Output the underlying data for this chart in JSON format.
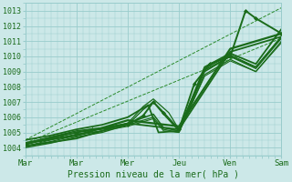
{
  "xlabel": "Pression niveau de la mer( hPa )",
  "bg_color": "#cce8e8",
  "grid_color": "#99cccc",
  "line_color": "#1a6b1a",
  "ylim": [
    1003.5,
    1013.5
  ],
  "yticks": [
    1004,
    1005,
    1006,
    1007,
    1008,
    1009,
    1010,
    1011,
    1012,
    1013
  ],
  "xlim": [
    0,
    5.0
  ],
  "xtick_positions": [
    0,
    1,
    2,
    3,
    4,
    5
  ],
  "xtick_labels": [
    "Mar",
    "Mar",
    "Mer",
    "Jeu",
    "Ven",
    "Sam"
  ],
  "vlines": [
    1,
    2,
    3,
    4,
    5
  ],
  "lines": [
    {
      "x": [
        0.0,
        0.3,
        0.7,
        1.0,
        1.3,
        1.6,
        2.0,
        2.3,
        2.5,
        2.7,
        3.0,
        3.3,
        3.6,
        4.0,
        4.3,
        4.5,
        5.0
      ],
      "y": [
        1004.2,
        1004.5,
        1004.8,
        1005.0,
        1005.2,
        1005.3,
        1005.5,
        1006.1,
        1007.0,
        1006.3,
        1005.2,
        1008.2,
        1009.5,
        1010.0,
        1013.0,
        1012.5,
        1011.5
      ],
      "style": "-",
      "lw": 1.4,
      "marker": "D",
      "ms": 2.0,
      "color": "#1a6b1a"
    },
    {
      "x": [
        0.0,
        0.5,
        1.0,
        1.5,
        2.0,
        2.5,
        2.7,
        3.0,
        3.5,
        4.0,
        4.5,
        5.0
      ],
      "y": [
        1004.3,
        1004.7,
        1005.1,
        1005.3,
        1005.6,
        1006.2,
        1005.3,
        1005.1,
        1009.0,
        1010.0,
        1009.3,
        1011.3
      ],
      "style": "-",
      "lw": 1.1,
      "marker": null,
      "ms": 0,
      "color": "#1a6b1a"
    },
    {
      "x": [
        0.0,
        0.5,
        1.0,
        1.5,
        2.0,
        2.5,
        2.7,
        3.0,
        3.5,
        4.0,
        4.5,
        5.0
      ],
      "y": [
        1004.2,
        1004.6,
        1005.0,
        1005.2,
        1005.5,
        1006.0,
        1005.2,
        1005.0,
        1008.8,
        1009.8,
        1009.0,
        1011.0
      ],
      "style": "-",
      "lw": 0.9,
      "marker": null,
      "ms": 0,
      "color": "#1a6b1a"
    },
    {
      "x": [
        0.0,
        0.5,
        1.0,
        1.5,
        2.0,
        2.5,
        2.7,
        3.0,
        3.5,
        4.0,
        4.5,
        5.0
      ],
      "y": [
        1004.1,
        1004.5,
        1004.9,
        1005.1,
        1005.4,
        1005.9,
        1005.1,
        1005.0,
        1008.7,
        1009.7,
        1009.0,
        1010.9
      ],
      "style": "-",
      "lw": 0.8,
      "marker": null,
      "ms": 0,
      "color": "#1a6b1a"
    },
    {
      "x": [
        0.0,
        5.0
      ],
      "y": [
        1004.3,
        1011.2
      ],
      "style": "--",
      "lw": 0.7,
      "marker": null,
      "ms": 0,
      "color": "#2a8a2a"
    },
    {
      "x": [
        0.0,
        5.0
      ],
      "y": [
        1004.5,
        1013.2
      ],
      "style": "--",
      "lw": 0.7,
      "marker": null,
      "ms": 0,
      "color": "#2a8a2a"
    },
    {
      "x": [
        0.0,
        0.5,
        1.0,
        1.5,
        2.0,
        2.4,
        2.6,
        3.0,
        3.5,
        4.0,
        4.5,
        5.0
      ],
      "y": [
        1004.5,
        1004.8,
        1005.2,
        1005.5,
        1006.0,
        1006.8,
        1005.0,
        1005.1,
        1009.3,
        1010.2,
        1009.5,
        1011.8
      ],
      "style": "-",
      "lw": 1.3,
      "marker": null,
      "ms": 0,
      "color": "#1a6b1a"
    },
    {
      "x": [
        0.0,
        0.5,
        1.0,
        1.5,
        2.0,
        2.3,
        2.5,
        2.7,
        3.0,
        3.5,
        4.0,
        4.5,
        5.0
      ],
      "y": [
        1004.0,
        1004.3,
        1004.7,
        1005.0,
        1005.5,
        1006.5,
        1007.0,
        1006.2,
        1005.1,
        1009.1,
        1010.0,
        1009.2,
        1011.2
      ],
      "style": "-",
      "lw": 1.0,
      "marker": null,
      "ms": 0,
      "color": "#1a6b1a"
    },
    {
      "x": [
        0.0,
        0.5,
        1.0,
        1.5,
        2.0,
        2.3,
        2.5,
        2.8,
        3.0,
        3.5,
        4.0,
        4.5,
        5.0
      ],
      "y": [
        1004.1,
        1004.4,
        1004.8,
        1005.1,
        1005.6,
        1006.7,
        1007.2,
        1006.3,
        1005.2,
        1009.2,
        1010.1,
        1009.3,
        1011.3
      ],
      "style": "-",
      "lw": 0.9,
      "marker": null,
      "ms": 0,
      "color": "#1a6b1a"
    },
    {
      "x": [
        0.0,
        1.0,
        2.0,
        3.0,
        4.0,
        5.0
      ],
      "y": [
        1004.3,
        1004.8,
        1005.8,
        1005.4,
        1010.5,
        1011.5
      ],
      "style": "-",
      "lw": 1.6,
      "marker": null,
      "ms": 0,
      "color": "#1a6b1a"
    },
    {
      "x": [
        0.0,
        1.0,
        2.0,
        3.0,
        4.0,
        5.0
      ],
      "y": [
        1004.1,
        1004.6,
        1005.6,
        1005.2,
        1010.3,
        1011.3
      ],
      "style": "-",
      "lw": 1.3,
      "marker": null,
      "ms": 0,
      "color": "#1a6b1a"
    }
  ]
}
